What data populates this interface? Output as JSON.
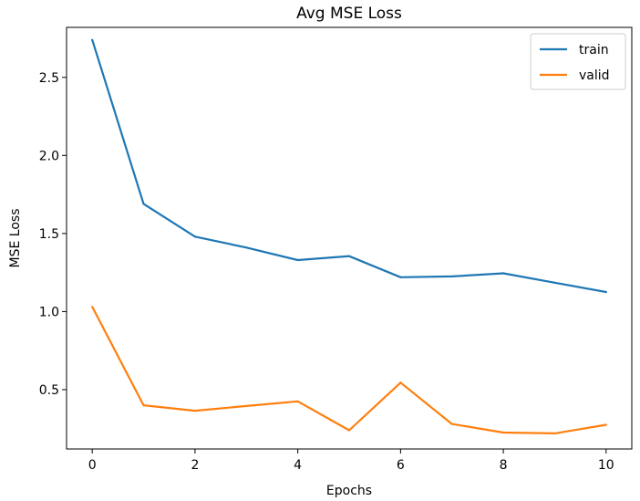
{
  "chart_data": {
    "type": "line",
    "title": "Avg MSE Loss",
    "xlabel": "Epochs",
    "ylabel": "MSE Loss",
    "x": [
      0,
      1,
      2,
      3,
      4,
      5,
      6,
      7,
      8,
      9,
      10
    ],
    "xticks": [
      "0",
      "2",
      "4",
      "6",
      "8",
      "10"
    ],
    "yticks": [
      "0.5",
      "1.0",
      "1.5",
      "2.0",
      "2.5"
    ],
    "xlim": [
      -0.5,
      10.5
    ],
    "ylim": [
      0.12,
      2.82
    ],
    "grid": false,
    "legend_position": "top-right",
    "series": [
      {
        "name": "train",
        "color": "#1f77b4",
        "values": [
          2.74,
          1.69,
          1.48,
          1.41,
          1.33,
          1.355,
          1.22,
          1.225,
          1.245,
          1.185,
          1.125
        ]
      },
      {
        "name": "valid",
        "color": "#ff7f0e",
        "values": [
          1.03,
          0.4,
          0.365,
          0.395,
          0.425,
          0.24,
          0.545,
          0.28,
          0.225,
          0.22,
          0.275
        ]
      }
    ]
  }
}
